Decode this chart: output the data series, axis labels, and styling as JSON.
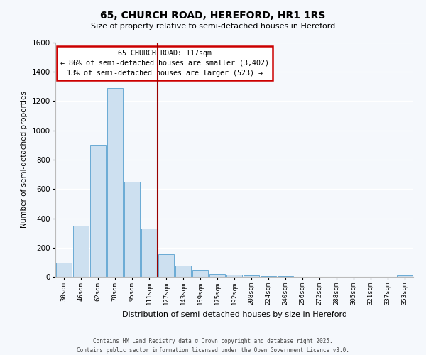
{
  "title": "65, CHURCH ROAD, HEREFORD, HR1 1RS",
  "subtitle": "Size of property relative to semi-detached houses in Hereford",
  "xlabel": "Distribution of semi-detached houses by size in Hereford",
  "ylabel": "Number of semi-detached properties",
  "categories": [
    "30sqm",
    "46sqm",
    "62sqm",
    "78sqm",
    "95sqm",
    "111sqm",
    "127sqm",
    "143sqm",
    "159sqm",
    "175sqm",
    "192sqm",
    "208sqm",
    "224sqm",
    "240sqm",
    "256sqm",
    "272sqm",
    "288sqm",
    "305sqm",
    "321sqm",
    "337sqm",
    "353sqm"
  ],
  "values": [
    95,
    350,
    900,
    1290,
    650,
    330,
    155,
    80,
    50,
    20,
    15,
    10,
    5,
    5,
    2,
    0,
    0,
    0,
    0,
    0,
    10
  ],
  "bar_color": "#cde0f0",
  "bar_edge_color": "#6aaad4",
  "vline_x": 5.5,
  "vline_color": "#990000",
  "annotation_line1": "65 CHURCH ROAD: 117sqm",
  "annotation_line2": "← 86% of semi-detached houses are smaller (3,402)",
  "annotation_line3": "13% of semi-detached houses are larger (523) →",
  "annotation_box_color": "#ffffff",
  "annotation_box_edge": "#cc0000",
  "ylim": [
    0,
    1600
  ],
  "yticks": [
    0,
    200,
    400,
    600,
    800,
    1000,
    1200,
    1400,
    1600
  ],
  "bg_color": "#f5f8fc",
  "plot_bg_color": "#f5f8fc",
  "grid_color": "#ffffff",
  "footer_line1": "Contains HM Land Registry data © Crown copyright and database right 2025.",
  "footer_line2": "Contains public sector information licensed under the Open Government Licence v3.0."
}
